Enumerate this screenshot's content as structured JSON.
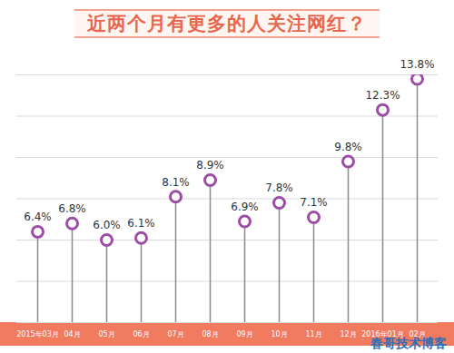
{
  "chart_data": {
    "type": "lollipop",
    "title": "近两个月有更多的人关注网红？",
    "categories": [
      "2015年03月",
      "04月",
      "05月",
      "06月",
      "07月",
      "08月",
      "09月",
      "10月",
      "11月",
      "12月",
      "2016年01月",
      "02月"
    ],
    "values": [
      6.4,
      6.8,
      6.0,
      6.1,
      8.1,
      8.9,
      6.9,
      7.8,
      7.1,
      9.8,
      12.3,
      13.8
    ],
    "value_labels": [
      "6.4%",
      "6.8%",
      "6.0%",
      "6.1%",
      "8.1%",
      "8.9%",
      "6.9%",
      "7.8%",
      "7.1%",
      "9.8%",
      "12.3%",
      "13.8%"
    ],
    "color": "#9b4fa3",
    "ylim": [
      2,
      14
    ],
    "yticks": [
      2,
      4,
      6,
      8,
      10,
      12,
      14
    ],
    "grid": true,
    "data_labels": true,
    "tick_labels": "x",
    "annotations": [
      "春哥技术博客"
    ]
  }
}
